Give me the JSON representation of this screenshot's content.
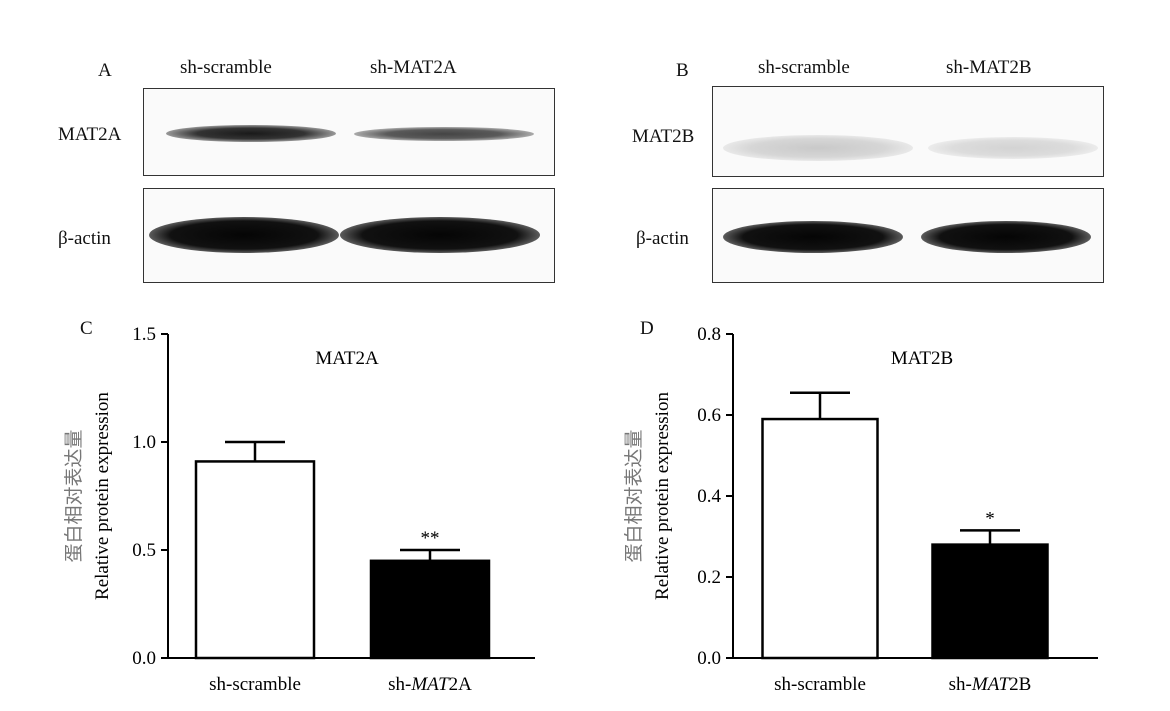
{
  "panels": {
    "A": {
      "letter": "A",
      "lanes": [
        "sh-scramble",
        "sh-MAT2A"
      ],
      "rows": [
        "MAT2A",
        "β-actin"
      ]
    },
    "B": {
      "letter": "B",
      "lanes": [
        "sh-scramble",
        "sh-MAT2B"
      ],
      "rows": [
        "MAT2B",
        "β-actin"
      ]
    }
  },
  "chart_data": [
    {
      "panel": "C",
      "type": "bar",
      "title": "MAT2A",
      "ylabel_cn": "蛋白相对表达量",
      "ylabel": "Relative protein expression",
      "categories": [
        {
          "prefix": "sh-",
          "italic": "",
          "suffix": "scramble"
        },
        {
          "prefix": "sh-",
          "italic": "MAT",
          "suffix": "2A"
        }
      ],
      "values": [
        0.91,
        0.45
      ],
      "errors": [
        0.09,
        0.05
      ],
      "significance": [
        "",
        "**"
      ],
      "fills": [
        "#ffffff",
        "#000000"
      ],
      "ylim": [
        0,
        1.5
      ],
      "yticks": [
        0.0,
        0.5,
        1.0,
        1.5
      ],
      "yticklabels": [
        "0.0",
        "0.5",
        "1.0",
        "1.5"
      ]
    },
    {
      "panel": "D",
      "type": "bar",
      "title": "MAT2B",
      "ylabel_cn": "蛋白相对表达量",
      "ylabel": "Relative protein expression",
      "categories": [
        {
          "prefix": "sh-",
          "italic": "",
          "suffix": "scramble"
        },
        {
          "prefix": "sh-",
          "italic": "MAT",
          "suffix": "2B"
        }
      ],
      "values": [
        0.59,
        0.28
      ],
      "errors": [
        0.065,
        0.035
      ],
      "significance": [
        "",
        "*"
      ],
      "fills": [
        "#ffffff",
        "#000000"
      ],
      "ylim": [
        0,
        0.8
      ],
      "yticks": [
        0.0,
        0.2,
        0.4,
        0.6,
        0.8
      ],
      "yticklabels": [
        "0.0",
        "0.2",
        "0.4",
        "0.6",
        "0.8"
      ]
    }
  ]
}
